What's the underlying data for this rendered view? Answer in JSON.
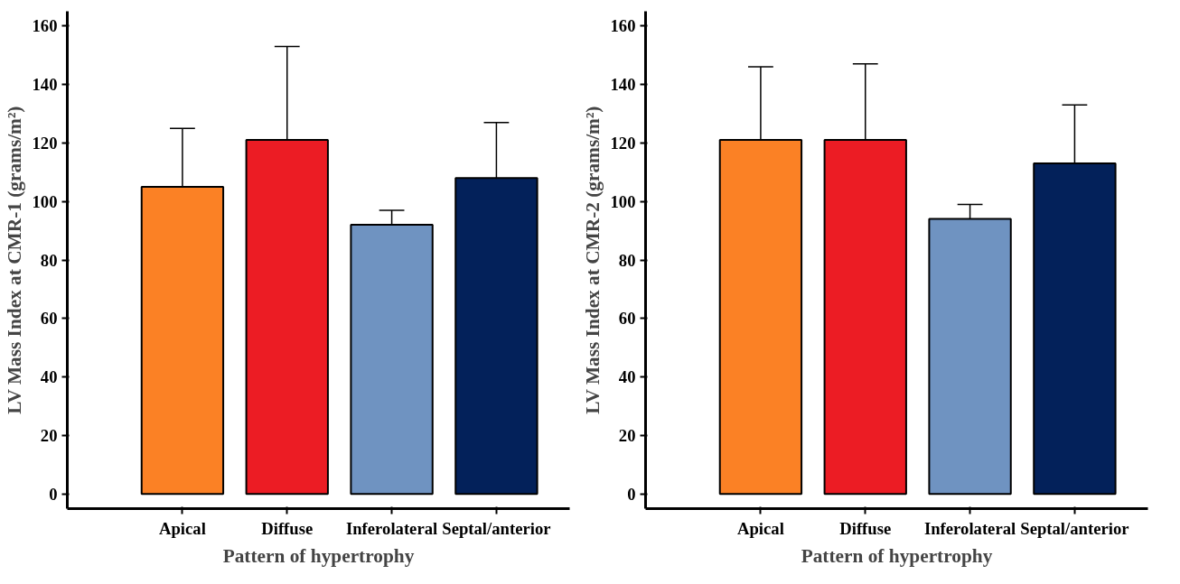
{
  "chart_data": [
    {
      "type": "bar",
      "xlabel": "Pattern of hypertrophy",
      "ylabel": "LV Mass Index at CMR-1 (grams/m²)",
      "categories": [
        "Apical",
        "Diffuse",
        "Inferolateral",
        "Septal/anterior"
      ],
      "values": [
        105,
        121,
        92,
        108
      ],
      "colors": [
        "#fb8125",
        "#ec1c24",
        "#6f93c1",
        "#03215a"
      ],
      "errors": [
        [
          105,
          125
        ],
        [
          121,
          153
        ],
        [
          92,
          97
        ],
        [
          108,
          127
        ]
      ],
      "ylim": [
        -5,
        165
      ],
      "yticks": [
        0,
        20,
        40,
        60,
        80,
        100,
        120,
        140,
        160
      ]
    },
    {
      "type": "bar",
      "xlabel": "Pattern of hypertrophy",
      "ylabel": "LV Mass Index at CMR-2 (grams/m²)",
      "categories": [
        "Apical",
        "Diffuse",
        "Inferolateral",
        "Septal/anterior"
      ],
      "values": [
        121,
        121,
        94,
        113
      ],
      "colors": [
        "#fb8125",
        "#ec1c24",
        "#6f93c1",
        "#03215a"
      ],
      "errors": [
        [
          121,
          146
        ],
        [
          121,
          147
        ],
        [
          94,
          99
        ],
        [
          113,
          133
        ]
      ],
      "ylim": [
        -5,
        165
      ],
      "yticks": [
        0,
        20,
        40,
        60,
        80,
        100,
        120,
        140,
        160
      ]
    }
  ]
}
